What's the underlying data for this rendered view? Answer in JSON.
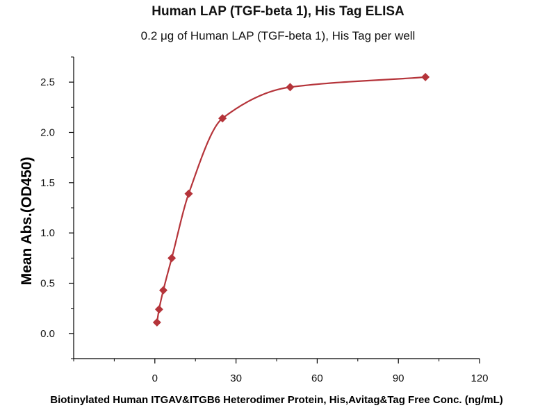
{
  "chart_data": {
    "type": "scatter",
    "title": "Human LAP (TGF-beta 1), His Tag ELISA",
    "subtitle": "0.2 μg of Human LAP (TGF-beta 1), His Tag per well",
    "xlabel": "Biotinylated Human ITGAV&ITGB6 Heterodimer Protein, His,Avitag&Tag Free Conc. (ng/mL)",
    "ylabel": "Mean Abs.(OD450)",
    "xlim": [
      -30,
      120
    ],
    "ylim": [
      -0.25,
      2.75
    ],
    "x_ticks": [
      0,
      30,
      60,
      90,
      120
    ],
    "x_tick_labels": [
      "0",
      "30",
      "60",
      "90",
      "120"
    ],
    "y_ticks": [
      0.0,
      0.5,
      1.0,
      1.5,
      2.0,
      2.5
    ],
    "y_tick_labels": [
      "0.0",
      "0.5",
      "1.0",
      "1.5",
      "2.0",
      "2.5"
    ],
    "grid": false,
    "legend": "none",
    "series": [
      {
        "x": [
          0.78,
          1.56,
          3.13,
          6.25,
          12.5,
          25,
          50,
          100
        ],
        "y": [
          0.11,
          0.24,
          0.43,
          0.75,
          1.39,
          2.14,
          2.45,
          2.55
        ],
        "marker": "diamond",
        "fit": "smooth-curve"
      }
    ],
    "colors": {
      "series": "#b5343a",
      "axis": "#000000"
    }
  }
}
